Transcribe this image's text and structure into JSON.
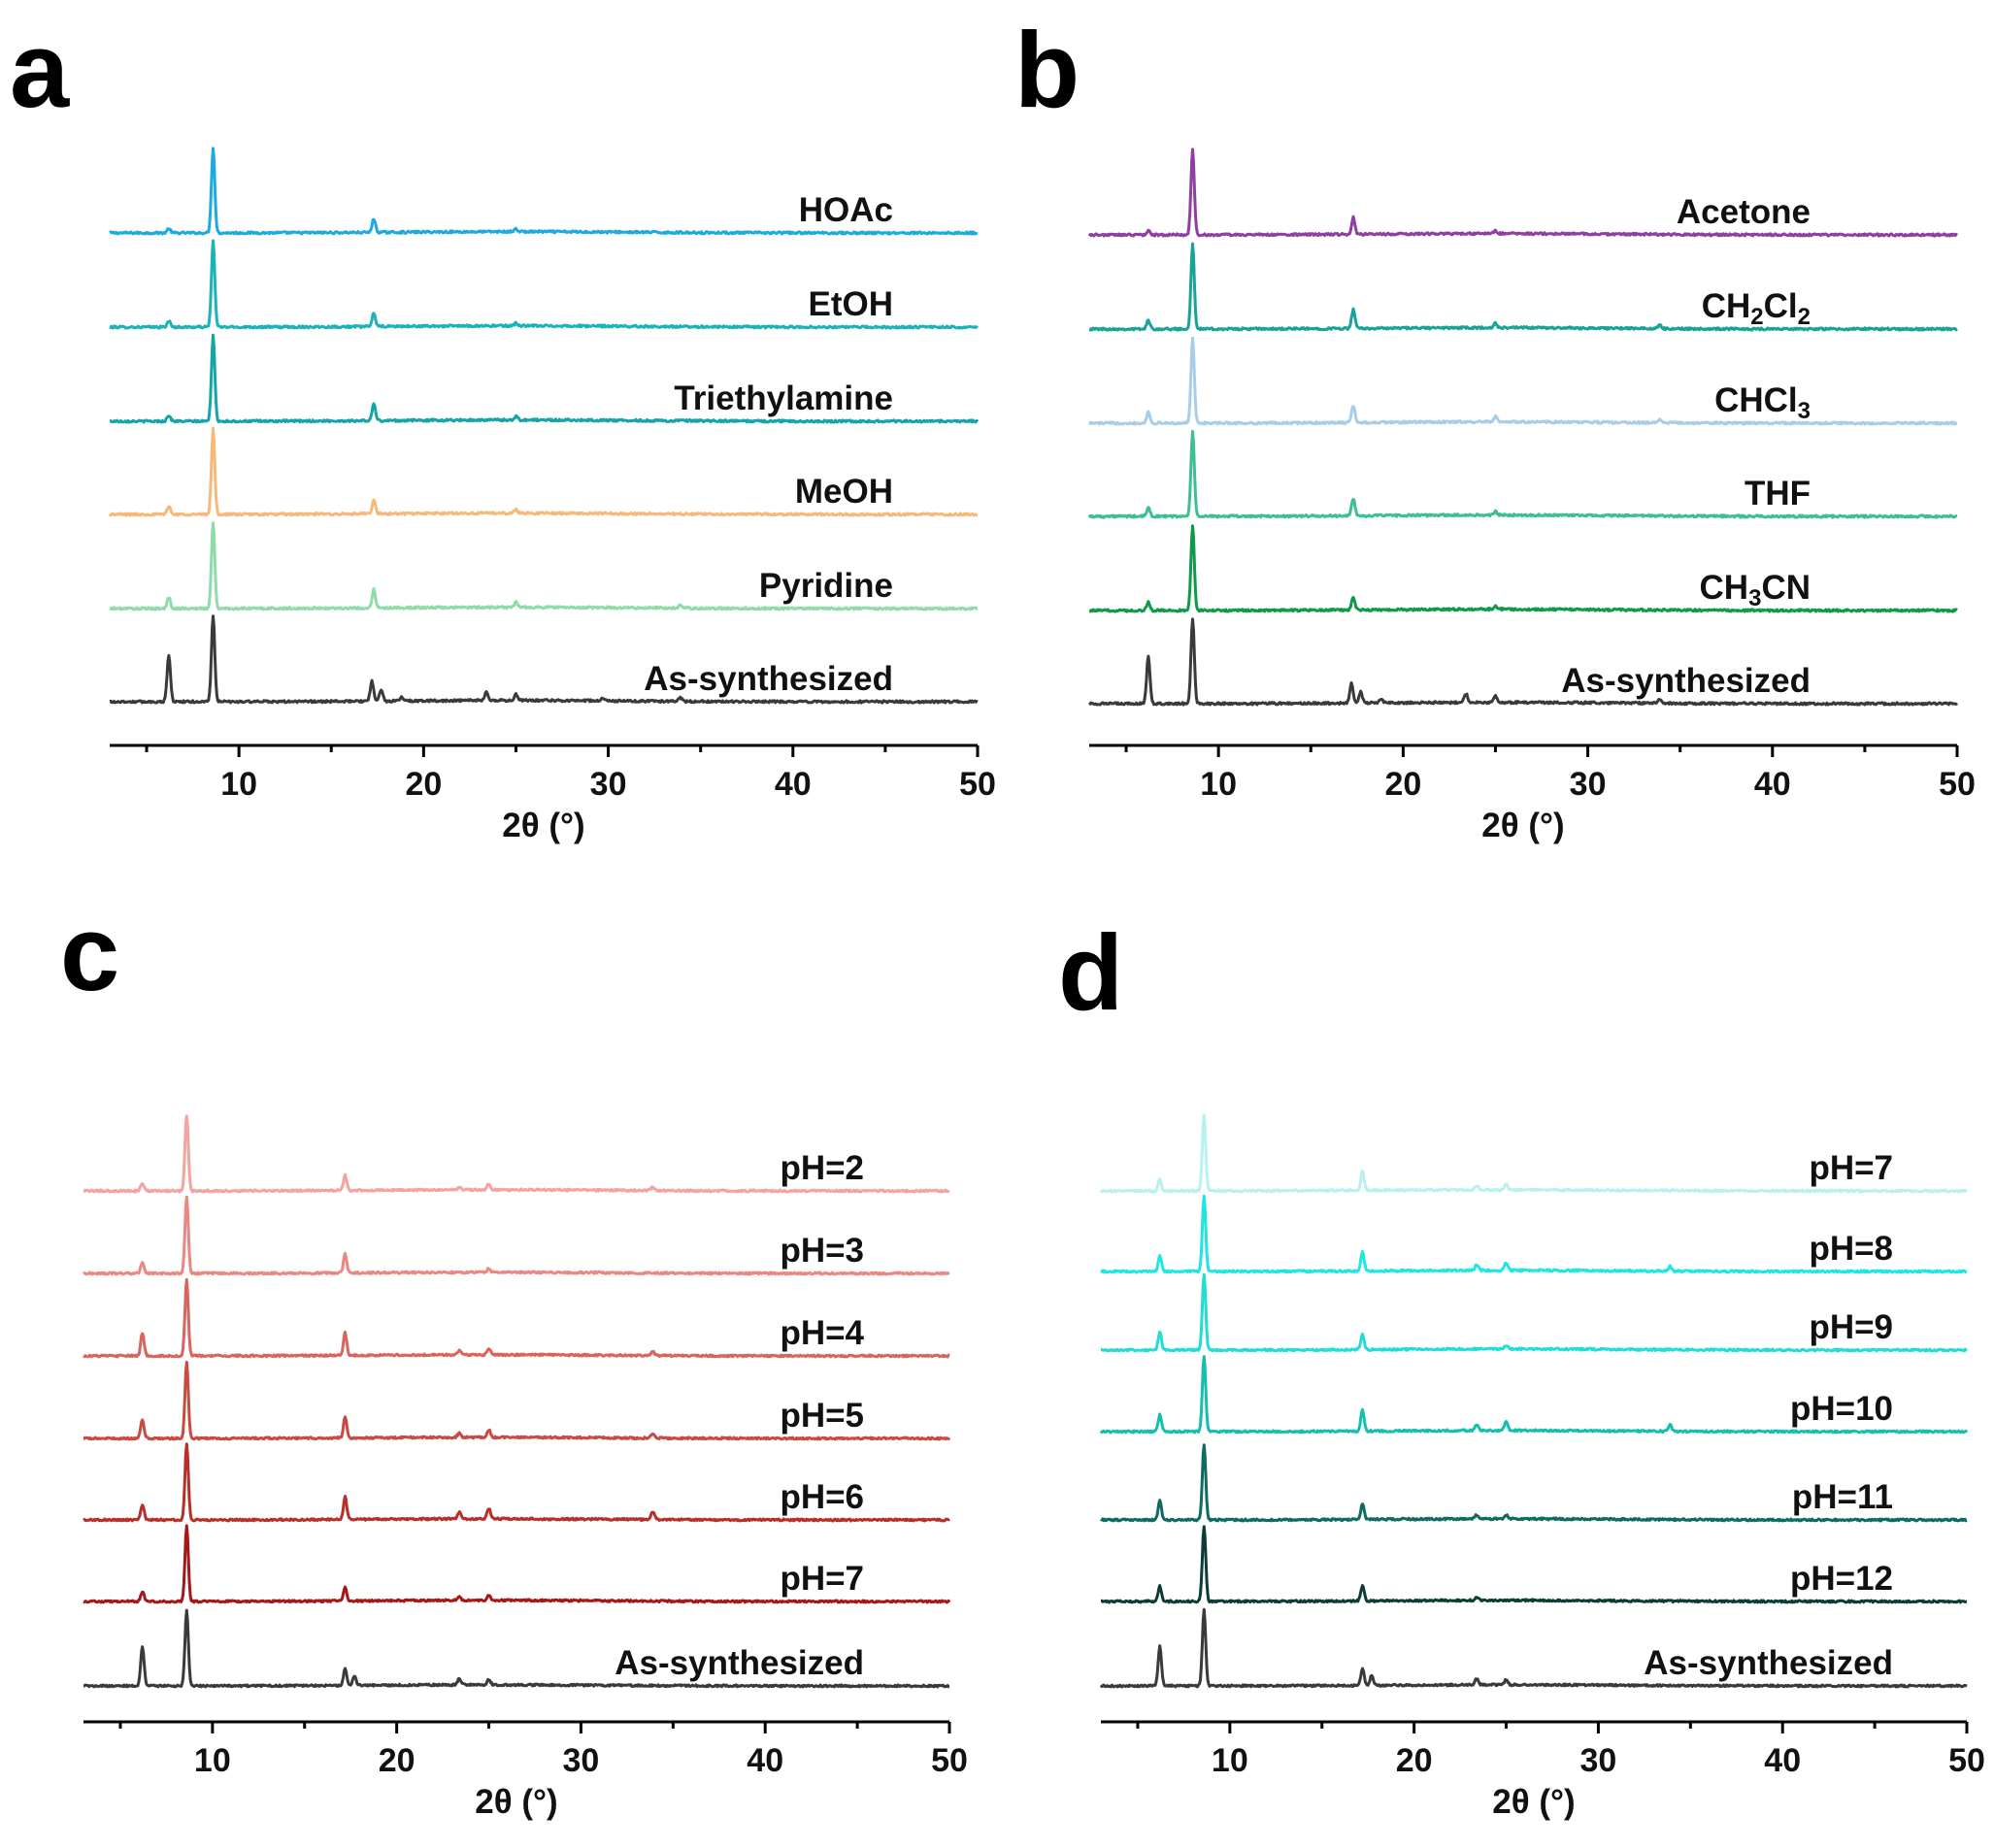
{
  "chart_data": [
    {
      "id": "a",
      "type": "line",
      "panel_label": "a",
      "xlabel": "2θ (°)",
      "xlim": [
        3,
        50
      ],
      "x_ticks": [
        10,
        20,
        30,
        40,
        50
      ],
      "series": [
        {
          "name": "HOAc",
          "color": "#1fa9e1",
          "peaks": [
            [
              6.2,
              0.05
            ],
            [
              8.6,
              1.0
            ],
            [
              17.3,
              0.16
            ],
            [
              25.0,
              0.03
            ]
          ]
        },
        {
          "name": "EtOH",
          "color": "#1ab3b8",
          "peaks": [
            [
              6.2,
              0.07
            ],
            [
              8.6,
              1.0
            ],
            [
              17.3,
              0.16
            ],
            [
              25.0,
              0.03
            ]
          ]
        },
        {
          "name": "Triethylamine",
          "color": "#13a5a8",
          "peaks": [
            [
              6.2,
              0.07
            ],
            [
              8.6,
              1.0
            ],
            [
              17.3,
              0.2
            ],
            [
              25.0,
              0.04
            ]
          ]
        },
        {
          "name": "MeOH",
          "color": "#f5b97a",
          "peaks": [
            [
              6.2,
              0.1
            ],
            [
              8.6,
              1.0
            ],
            [
              17.3,
              0.16
            ],
            [
              25.0,
              0.04
            ]
          ]
        },
        {
          "name": "Pyridine",
          "color": "#8fdcaa",
          "peaks": [
            [
              6.2,
              0.13
            ],
            [
              8.6,
              1.0
            ],
            [
              17.3,
              0.22
            ],
            [
              25.0,
              0.06
            ],
            [
              33.9,
              0.03
            ]
          ]
        },
        {
          "name": "As-synthesized",
          "color": "#3a3a3a",
          "peaks": [
            [
              6.2,
              0.55
            ],
            [
              8.6,
              1.0
            ],
            [
              17.2,
              0.23
            ],
            [
              17.7,
              0.13
            ],
            [
              18.8,
              0.05
            ],
            [
              23.4,
              0.1
            ],
            [
              25.0,
              0.07
            ],
            [
              29.7,
              0.03
            ],
            [
              33.9,
              0.04
            ]
          ]
        }
      ]
    },
    {
      "id": "b",
      "type": "line",
      "panel_label": "b",
      "xlabel": "2θ (°)",
      "xlim": [
        3,
        50
      ],
      "x_ticks": [
        10,
        20,
        30,
        40,
        50
      ],
      "series": [
        {
          "name": "Acetone",
          "name_parts": [
            [
              "Acetone",
              false
            ]
          ],
          "color": "#8e3fa0",
          "peaks": [
            [
              6.2,
              0.05
            ],
            [
              8.6,
              1.0
            ],
            [
              17.3,
              0.2
            ],
            [
              25.0,
              0.03
            ]
          ]
        },
        {
          "name": "CH2Cl2",
          "name_parts": [
            [
              "CH",
              false
            ],
            [
              "2",
              true
            ],
            [
              "Cl",
              false
            ],
            [
              "2",
              true
            ]
          ],
          "color": "#17a398",
          "peaks": [
            [
              6.2,
              0.1
            ],
            [
              8.6,
              1.0
            ],
            [
              17.3,
              0.22
            ],
            [
              25.0,
              0.05
            ],
            [
              33.9,
              0.04
            ]
          ]
        },
        {
          "name": "CHCl3",
          "name_parts": [
            [
              "CHCl",
              false
            ],
            [
              "3",
              true
            ]
          ],
          "color": "#a8cde8",
          "peaks": [
            [
              6.2,
              0.13
            ],
            [
              8.6,
              1.0
            ],
            [
              17.3,
              0.2
            ],
            [
              25.0,
              0.06
            ],
            [
              33.9,
              0.04
            ]
          ]
        },
        {
          "name": "THF",
          "name_parts": [
            [
              "THF",
              false
            ]
          ],
          "color": "#3dbf8f",
          "peaks": [
            [
              6.2,
              0.1
            ],
            [
              8.6,
              1.0
            ],
            [
              17.3,
              0.2
            ],
            [
              25.0,
              0.04
            ]
          ]
        },
        {
          "name": "CH3CN",
          "name_parts": [
            [
              "CH",
              false
            ],
            [
              "3",
              true
            ],
            [
              "CN",
              false
            ]
          ],
          "color": "#0e9a48",
          "peaks": [
            [
              6.2,
              0.1
            ],
            [
              8.6,
              1.0
            ],
            [
              17.3,
              0.15
            ],
            [
              25.0,
              0.03
            ]
          ]
        },
        {
          "name": "As-synthesized",
          "name_parts": [
            [
              "As-synthesized",
              false
            ]
          ],
          "color": "#3a3a3a",
          "peaks": [
            [
              6.2,
              0.55
            ],
            [
              8.6,
              1.0
            ],
            [
              17.2,
              0.23
            ],
            [
              17.7,
              0.13
            ],
            [
              18.8,
              0.05
            ],
            [
              23.4,
              0.1
            ],
            [
              25.0,
              0.07
            ],
            [
              33.9,
              0.04
            ]
          ]
        }
      ]
    },
    {
      "id": "c",
      "type": "line",
      "panel_label": "c",
      "xlabel": "2θ (°)",
      "xlim": [
        3,
        50
      ],
      "x_ticks": [
        10,
        20,
        30,
        40,
        50
      ],
      "series": [
        {
          "name": "pH=2",
          "color": "#f4a3a0",
          "peaks": [
            [
              6.2,
              0.1
            ],
            [
              8.6,
              1.0
            ],
            [
              17.2,
              0.2
            ],
            [
              23.4,
              0.03
            ],
            [
              25.0,
              0.08
            ],
            [
              33.9,
              0.05
            ]
          ]
        },
        {
          "name": "pH=3",
          "color": "#ec8681",
          "peaks": [
            [
              6.2,
              0.15
            ],
            [
              8.6,
              1.0
            ],
            [
              17.2,
              0.25
            ],
            [
              25.0,
              0.05
            ]
          ]
        },
        {
          "name": "pH=4",
          "color": "#d9645d",
          "peaks": [
            [
              6.2,
              0.3
            ],
            [
              8.6,
              1.0
            ],
            [
              17.2,
              0.3
            ],
            [
              23.4,
              0.06
            ],
            [
              25.0,
              0.09
            ],
            [
              33.9,
              0.05
            ]
          ]
        },
        {
          "name": "pH=5",
          "color": "#c94a42",
          "peaks": [
            [
              6.2,
              0.25
            ],
            [
              8.6,
              1.0
            ],
            [
              17.2,
              0.27
            ],
            [
              23.4,
              0.06
            ],
            [
              25.0,
              0.1
            ],
            [
              33.9,
              0.06
            ]
          ]
        },
        {
          "name": "pH=6",
          "color": "#b82e28",
          "peaks": [
            [
              6.2,
              0.2
            ],
            [
              8.6,
              1.0
            ],
            [
              17.2,
              0.3
            ],
            [
              23.4,
              0.09
            ],
            [
              25.0,
              0.14
            ],
            [
              33.9,
              0.1
            ]
          ]
        },
        {
          "name": "pH=7",
          "color": "#a61717",
          "peaks": [
            [
              6.2,
              0.13
            ],
            [
              8.6,
              1.0
            ],
            [
              17.2,
              0.18
            ],
            [
              23.4,
              0.05
            ],
            [
              25.0,
              0.07
            ]
          ]
        },
        {
          "name": "As-synthesized",
          "color": "#3a3a3a",
          "peaks": [
            [
              6.2,
              0.52
            ],
            [
              8.6,
              1.0
            ],
            [
              17.2,
              0.22
            ],
            [
              17.7,
              0.13
            ],
            [
              23.4,
              0.08
            ],
            [
              25.0,
              0.07
            ]
          ]
        }
      ]
    },
    {
      "id": "d",
      "type": "line",
      "panel_label": "d",
      "xlabel": "2θ (°)",
      "xlim": [
        3,
        50
      ],
      "x_ticks": [
        10,
        20,
        30,
        40,
        50
      ],
      "series": [
        {
          "name": "pH=7",
          "color": "#b8f1ef",
          "peaks": [
            [
              6.2,
              0.15
            ],
            [
              8.6,
              1.0
            ],
            [
              17.2,
              0.25
            ],
            [
              23.4,
              0.06
            ],
            [
              25.0,
              0.08
            ]
          ]
        },
        {
          "name": "pH=8",
          "color": "#1ee6e0",
          "peaks": [
            [
              6.2,
              0.2
            ],
            [
              8.6,
              1.0
            ],
            [
              17.2,
              0.25
            ],
            [
              23.4,
              0.08
            ],
            [
              25.0,
              0.1
            ],
            [
              33.9,
              0.06
            ]
          ]
        },
        {
          "name": "pH=9",
          "color": "#22ddd3",
          "peaks": [
            [
              6.2,
              0.23
            ],
            [
              8.6,
              1.0
            ],
            [
              17.2,
              0.2
            ],
            [
              25.0,
              0.05
            ]
          ]
        },
        {
          "name": "pH=10",
          "color": "#15bfae",
          "peaks": [
            [
              6.2,
              0.22
            ],
            [
              8.6,
              1.0
            ],
            [
              17.2,
              0.28
            ],
            [
              23.4,
              0.08
            ],
            [
              25.0,
              0.13
            ],
            [
              33.9,
              0.08
            ]
          ]
        },
        {
          "name": "pH=11",
          "color": "#0d6b62",
          "peaks": [
            [
              6.2,
              0.25
            ],
            [
              8.6,
              1.0
            ],
            [
              17.2,
              0.2
            ],
            [
              23.4,
              0.05
            ],
            [
              25.0,
              0.05
            ]
          ]
        },
        {
          "name": "pH=12",
          "color": "#0b3d34",
          "peaks": [
            [
              6.2,
              0.2
            ],
            [
              8.6,
              1.0
            ],
            [
              17.2,
              0.2
            ],
            [
              23.4,
              0.05
            ]
          ]
        },
        {
          "name": "As-synthesized",
          "color": "#3a3a3a",
          "peaks": [
            [
              6.2,
              0.52
            ],
            [
              8.6,
              1.0
            ],
            [
              17.2,
              0.22
            ],
            [
              17.7,
              0.13
            ],
            [
              23.4,
              0.08
            ],
            [
              25.0,
              0.07
            ]
          ]
        }
      ]
    }
  ]
}
